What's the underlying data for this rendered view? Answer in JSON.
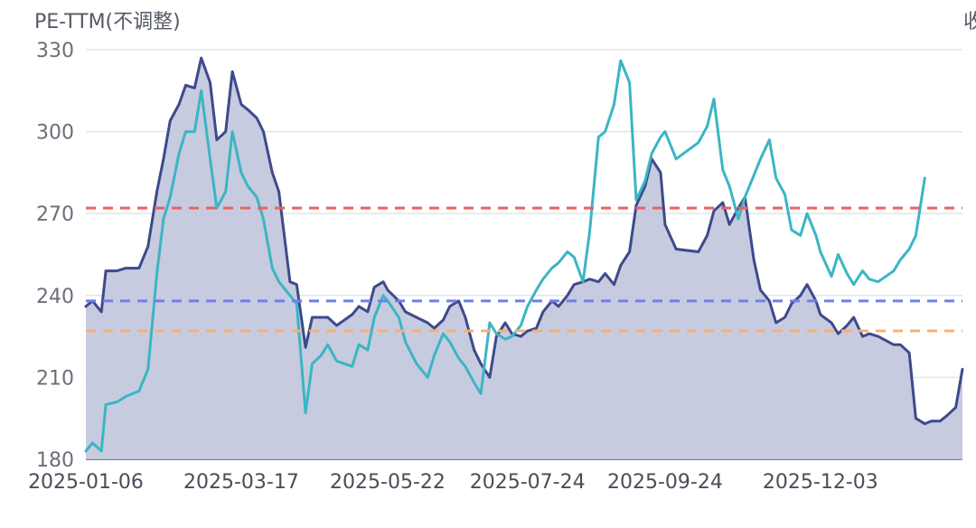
{
  "chart_title": "PE-TTM(不调整)",
  "right_label": "收",
  "chart_data": {
    "type": "line",
    "title": "PE-TTM(不调整)",
    "ylim": [
      180,
      330
    ],
    "yticks": [
      330,
      300,
      270,
      240,
      210,
      180
    ],
    "xticks": [
      "2025-01-06",
      "2025-03-17",
      "2025-05-22",
      "2025-07-24",
      "2025-09-24",
      "2025-12-03"
    ],
    "grid": true,
    "reference_lines": [
      {
        "value": 272,
        "color": "#f0605e"
      },
      {
        "value": 238,
        "color": "#6f7ef2"
      },
      {
        "value": 227,
        "color": "#f5b078"
      }
    ],
    "series": [
      {
        "color": "#3d4a8c",
        "fill": "#c4c8dd",
        "values": [
          236,
          238,
          234,
          249,
          249,
          250,
          250,
          258,
          278,
          290,
          304,
          310,
          317,
          316,
          327,
          318,
          297,
          300,
          322,
          310,
          308,
          305,
          300,
          285,
          278,
          245,
          244,
          221,
          232,
          232,
          232,
          229,
          233,
          236,
          234,
          243,
          245,
          242,
          238,
          234,
          232,
          230,
          228,
          231,
          236,
          238,
          232,
          220,
          215,
          210,
          225,
          230,
          226,
          225,
          227,
          228,
          234,
          238,
          236,
          240,
          244,
          245,
          246,
          245,
          248,
          244,
          251,
          256,
          273,
          280,
          290,
          285,
          266,
          257,
          256,
          262,
          271,
          274,
          266,
          272,
          276,
          253,
          242,
          238,
          230,
          232,
          237,
          240,
          244,
          238,
          233,
          230,
          226,
          229,
          232,
          225,
          226,
          225,
          222,
          222,
          219,
          195,
          193,
          194,
          194,
          196,
          199,
          213
        ],
        "dates": [
          "2025-01-06",
          "2025-01-09",
          "2025-01-13",
          "2025-01-15",
          "2025-01-20",
          "2025-01-24",
          "2025-01-30",
          "2025-02-03",
          "2025-02-07",
          "2025-02-10",
          "2025-02-13",
          "2025-02-17",
          "2025-02-20",
          "2025-02-24",
          "2025-02-27",
          "2025-03-03",
          "2025-03-06",
          "2025-03-10",
          "2025-03-13",
          "2025-03-17",
          "2025-03-20",
          "2025-03-24",
          "2025-03-27",
          "2025-03-31",
          "2025-04-03",
          "2025-04-08",
          "2025-04-11",
          "2025-04-15",
          "2025-04-18",
          "2025-04-22",
          "2025-04-25",
          "2025-04-29",
          "2025-05-06",
          "2025-05-09",
          "2025-05-13",
          "2025-05-16",
          "2025-05-20",
          "2025-05-22",
          "2025-05-27",
          "2025-05-30",
          "2025-06-04",
          "2025-06-09",
          "2025-06-12",
          "2025-06-16",
          "2025-06-19",
          "2025-06-23",
          "2025-06-26",
          "2025-06-30",
          "2025-07-03",
          "2025-07-07",
          "2025-07-10",
          "2025-07-14",
          "2025-07-17",
          "2025-07-21",
          "2025-07-24",
          "2025-07-28",
          "2025-07-31",
          "2025-08-04",
          "2025-08-07",
          "2025-08-11",
          "2025-08-14",
          "2025-08-18",
          "2025-08-21",
          "2025-08-25",
          "2025-08-28",
          "2025-09-01",
          "2025-09-04",
          "2025-09-08",
          "2025-09-11",
          "2025-09-15",
          "2025-09-18",
          "2025-09-22",
          "2025-09-24",
          "2025-09-29",
          "2025-10-09",
          "2025-10-13",
          "2025-10-16",
          "2025-10-20",
          "2025-10-23",
          "2025-10-27",
          "2025-10-30",
          "2025-11-03",
          "2025-11-06",
          "2025-11-10",
          "2025-11-13",
          "2025-11-17",
          "2025-11-20",
          "2025-11-24",
          "2025-11-27",
          "2025-12-01",
          "2025-12-03",
          "2025-12-08",
          "2025-12-11",
          "2025-12-15",
          "2025-12-18",
          "2025-12-22",
          "2025-12-25",
          "2025-12-29",
          "2026-01-05",
          "2026-01-08",
          "2026-01-12",
          "2026-01-15",
          "2026-01-19",
          "2026-01-22",
          "2026-01-26",
          "2026-01-29",
          "2026-02-02",
          "2026-02-05"
        ]
      },
      {
        "color": "#3bb5c4",
        "values": [
          183,
          186,
          183,
          200,
          201,
          203,
          205,
          213,
          248,
          268,
          276,
          292,
          300,
          300,
          315,
          290,
          272,
          278,
          300,
          285,
          280,
          276,
          268,
          250,
          245,
          240,
          237,
          197,
          215,
          218,
          222,
          216,
          214,
          222,
          220,
          232,
          240,
          238,
          232,
          223,
          215,
          210,
          218,
          226,
          223,
          217,
          214,
          208,
          204,
          230,
          226,
          224,
          225,
          229,
          236,
          242,
          246,
          250,
          252,
          256,
          254,
          245,
          263,
          298,
          300,
          310,
          326,
          318,
          275,
          282,
          292,
          298,
          300,
          290,
          296,
          302,
          312,
          286,
          280,
          268,
          276,
          284,
          290,
          297,
          283,
          277,
          264,
          262,
          270,
          262,
          256,
          247,
          255,
          248,
          244,
          249,
          246,
          245,
          249,
          253,
          257,
          262,
          283
        ],
        "dates": [
          "2025-01-06",
          "2025-01-09",
          "2025-01-13",
          "2025-01-15",
          "2025-01-20",
          "2025-01-24",
          "2025-01-30",
          "2025-02-03",
          "2025-02-07",
          "2025-02-10",
          "2025-02-13",
          "2025-02-17",
          "2025-02-20",
          "2025-02-24",
          "2025-02-27",
          "2025-03-03",
          "2025-03-06",
          "2025-03-10",
          "2025-03-13",
          "2025-03-17",
          "2025-03-20",
          "2025-03-24",
          "2025-03-27",
          "2025-03-31",
          "2025-04-03",
          "2025-04-08",
          "2025-04-11",
          "2025-04-15",
          "2025-04-18",
          "2025-04-22",
          "2025-04-25",
          "2025-04-29",
          "2025-05-06",
          "2025-05-09",
          "2025-05-13",
          "2025-05-16",
          "2025-05-20",
          "2025-05-22",
          "2025-05-27",
          "2025-05-30",
          "2025-06-04",
          "2025-06-09",
          "2025-06-12",
          "2025-06-16",
          "2025-06-19",
          "2025-06-23",
          "2025-06-26",
          "2025-06-30",
          "2025-07-03",
          "2025-07-07",
          "2025-07-10",
          "2025-07-14",
          "2025-07-17",
          "2025-07-21",
          "2025-07-24",
          "2025-07-28",
          "2025-07-31",
          "2025-08-04",
          "2025-08-07",
          "2025-08-11",
          "2025-08-14",
          "2025-08-18",
          "2025-08-21",
          "2025-08-25",
          "2025-08-28",
          "2025-09-01",
          "2025-09-04",
          "2025-09-08",
          "2025-09-11",
          "2025-09-15",
          "2025-09-18",
          "2025-09-22",
          "2025-09-24",
          "2025-09-29",
          "2025-10-09",
          "2025-10-13",
          "2025-10-16",
          "2025-10-20",
          "2025-10-23",
          "2025-10-27",
          "2025-10-30",
          "2025-11-03",
          "2025-11-06",
          "2025-11-10",
          "2025-11-13",
          "2025-11-17",
          "2025-11-20",
          "2025-11-24",
          "2025-11-27",
          "2025-12-01",
          "2025-12-03",
          "2025-12-08",
          "2025-12-11",
          "2025-12-15",
          "2025-12-18",
          "2025-12-22",
          "2025-12-25",
          "2025-12-29",
          "2026-01-05",
          "2026-01-08",
          "2026-01-12",
          "2026-01-15",
          "2026-01-19"
        ]
      }
    ]
  }
}
